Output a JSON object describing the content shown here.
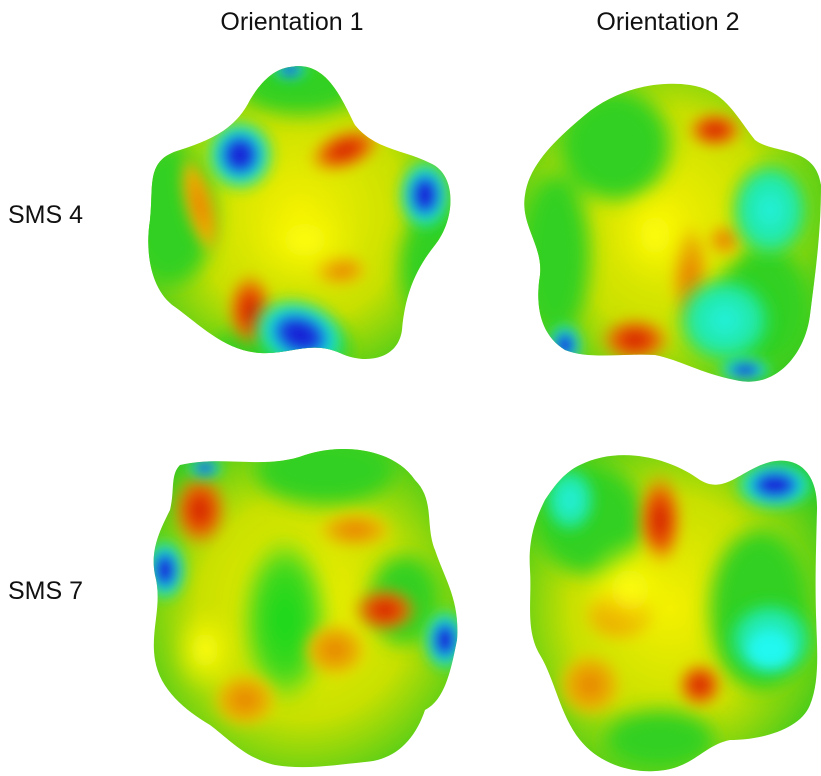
{
  "columns": [
    "Orientation 1",
    "Orientation 2"
  ],
  "rows": [
    "SMS 4",
    "SMS 7"
  ],
  "colors": {
    "red": "#d41a00",
    "orange": "#ee8a00",
    "yellow": "#f2f200",
    "green": "#18d818",
    "cyan": "#18f0d8",
    "blue": "#1818d8"
  }
}
